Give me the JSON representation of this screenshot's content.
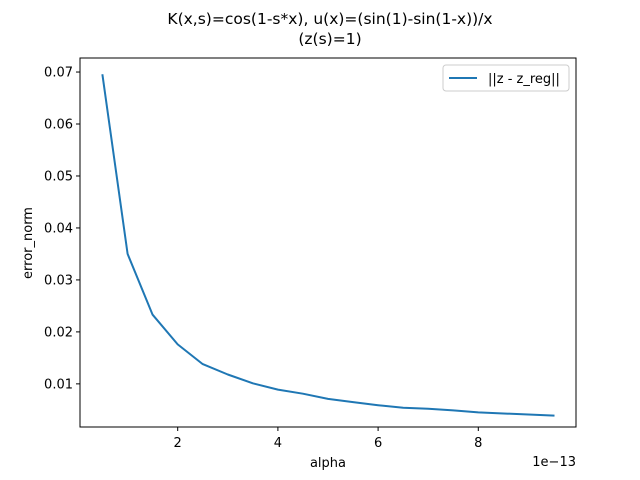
{
  "chart_data": {
    "type": "line",
    "title_line1": "K(x,s)=cos(1-s*x), u(x)=(sin(1)-sin(1-x))/x",
    "title_line2": "(z(s)=1)",
    "xlabel": "alpha",
    "ylabel": "error_norm",
    "x_offset_text": "1e−13",
    "x_multiplier_exponent": -13,
    "xlim": [
      0.05,
      9.95
    ],
    "ylim": [
      0.0017,
      0.0727
    ],
    "xticks": [
      2,
      4,
      6,
      8
    ],
    "xtick_labels": [
      "2",
      "4",
      "6",
      "8"
    ],
    "yticks": [
      0.01,
      0.02,
      0.03,
      0.04,
      0.05,
      0.06,
      0.07
    ],
    "ytick_labels": [
      "0.01",
      "0.02",
      "0.03",
      "0.04",
      "0.05",
      "0.06",
      "0.07"
    ],
    "grid": false,
    "legend_position": "top-right",
    "series": [
      {
        "name": "||z - z_reg||",
        "color": "#1f77b4",
        "x": [
          0.5,
          1.0,
          1.5,
          2.0,
          2.5,
          3.0,
          3.5,
          4.0,
          4.5,
          5.0,
          5.5,
          6.0,
          6.5,
          7.0,
          7.5,
          8.0,
          8.5,
          9.0,
          9.5
        ],
        "y": [
          0.0694,
          0.035,
          0.0233,
          0.0176,
          0.0138,
          0.0118,
          0.0101,
          0.0089,
          0.0081,
          0.0071,
          0.0065,
          0.0059,
          0.0054,
          0.0052,
          0.0049,
          0.0045,
          0.0043,
          0.0041,
          0.0039
        ]
      }
    ]
  }
}
